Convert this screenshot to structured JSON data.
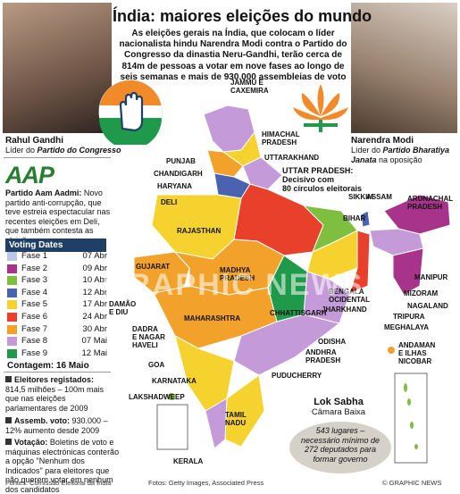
{
  "header": {
    "title": "Índia: maiores eleições do mundo",
    "intro": "As eleições gerais na Índia, que colocam o líder nacionalista hindu Narendra Modi contra o Partido do Congresso da dinastia Neru-Gandhi, terão cerca de 814m de pessoas a votar em nove fases ao longo de seis semanas e mais de 930.000 assembleias de voto"
  },
  "leaders": {
    "left": {
      "name": "Rahul Gandhi",
      "role_prefix": "Líder do ",
      "party": "Partido do Congresso"
    },
    "right": {
      "name": "Narendra Modi",
      "role_prefix": "Líder do ",
      "party": "Partido Bharatiya Janata",
      "role_suffix": " na oposição"
    }
  },
  "aap": {
    "logo": "AAP",
    "name": "Partido Aam Aadmi:",
    "text": "Novo partido anti-corrupção, que teve estreia espectacular nas recentes eleições em Deli, que também contesta as eleições"
  },
  "voting": {
    "title": "Voting Dates",
    "phases": [
      {
        "label": "Fase 1",
        "date": "07 Abr",
        "color": "#b9c8e8"
      },
      {
        "label": "Fase 2",
        "date": "09 Abr",
        "color": "#a8338a"
      },
      {
        "label": "Fase 3",
        "date": "10 Abr",
        "color": "#7fbf3f"
      },
      {
        "label": "Fase 4",
        "date": "12 Abr",
        "color": "#4a62b0"
      },
      {
        "label": "Fase 5",
        "date": "17 Abr",
        "color": "#f5d22e"
      },
      {
        "label": "Fase 6",
        "date": "24 Abr",
        "color": "#e8402a"
      },
      {
        "label": "Fase 7",
        "date": "30 Abr",
        "color": "#f2a22a"
      },
      {
        "label": "Fase 8",
        "date": "07 Mai",
        "color": "#c59ad8"
      },
      {
        "label": "Fase 9",
        "date": "12 Mai",
        "color": "#1e9a4a"
      }
    ],
    "count": "Contagem: 16 Maio"
  },
  "stats": {
    "registered_label": "Eleitores registados:",
    "registered_text": "814,5 milhões – 100m mais que nas eleições parlamentares de 2009",
    "assemblies_label": "Assemb. voto:",
    "assemblies_text": "930.000 – 12% aumento desde 2009",
    "vote_label": "Votação:",
    "vote_text": "Boletins de voto e máquinas electrónicas conterão a opção \"Nenhum dos Indicados\" para eleitores que não querem votar em nenhum dos candidatos"
  },
  "map_labels": {
    "jk": "JAMMU E\nCAXEMIRA",
    "hp": "HIMACHAL\nPRADESH",
    "punjab": "PUNJAB",
    "chandigarh": "CHANDIGARH",
    "uttarakhand": "UTTARAKHAND",
    "haryana": "HARYANA",
    "delhi": "DELI",
    "rajasthan": "RAJASTHAN",
    "up": "UTTAR PRADESH:\nDecisivo com\n80 círculos eleitorais",
    "sikkim": "SIKKIM",
    "assam": "ASSAM",
    "arunachal": "ARUNACHAL\nPRADESH",
    "bihar": "BIHAR",
    "gujarat": "GUJARAT",
    "mp": "MADHYA\nPRADESH",
    "jharkhand": "JHARKHAND",
    "wb": "BENGALA\nOCIDENTAL",
    "chhattisgarh": "CHHATTISGARH",
    "maharashtra": "MAHARASHTRA",
    "odisha": "ODISHA",
    "daman": "DAMÃO\nE DIU",
    "dadra": "DADRA\nE NAGAR\nHAVELI",
    "goa": "GOA",
    "karnataka": "KARNATAKA",
    "ap": "ANDHRA\nPRADESH",
    "puducherry": "PUDUCHERRY",
    "lakshadweep": "LAKSHADWEEP",
    "tn": "TAMIL\nNADU",
    "kerala": "KERALA",
    "meghalaya": "MEGHALAYA",
    "manipur": "MANIPUR",
    "mizoram": "MIZORAM",
    "nagaland": "NAGALAND",
    "tripura": "TRIPURA",
    "andaman": "ANDAMAN\nE ILHAS\nNICOBAR"
  },
  "lok_sabha": {
    "title": "Lok Sabha",
    "subtitle": "Câmara Baixa",
    "text": "543 lugares – necessário mínimo de 272 deputados para formar governo"
  },
  "watermark": "GRAPHIC NEWS",
  "footer": {
    "sources": "Fontes: Comissão Eleitoral da Índia",
    "photos": "Fotos: Getty Images, Associated Press",
    "credit": "© GRAPHIC NEWS"
  },
  "chart_data": {
    "type": "table",
    "title": "Voting Dates",
    "columns": [
      "Fase",
      "Data"
    ],
    "rows": [
      [
        "Fase 1",
        "07 Abr"
      ],
      [
        "Fase 2",
        "09 Abr"
      ],
      [
        "Fase 3",
        "10 Abr"
      ],
      [
        "Fase 4",
        "12 Abr"
      ],
      [
        "Fase 5",
        "17 Abr"
      ],
      [
        "Fase 6",
        "24 Abr"
      ],
      [
        "Fase 7",
        "30 Abr"
      ],
      [
        "Fase 8",
        "07 Mai"
      ],
      [
        "Fase 9",
        "12 Mai"
      ]
    ]
  }
}
